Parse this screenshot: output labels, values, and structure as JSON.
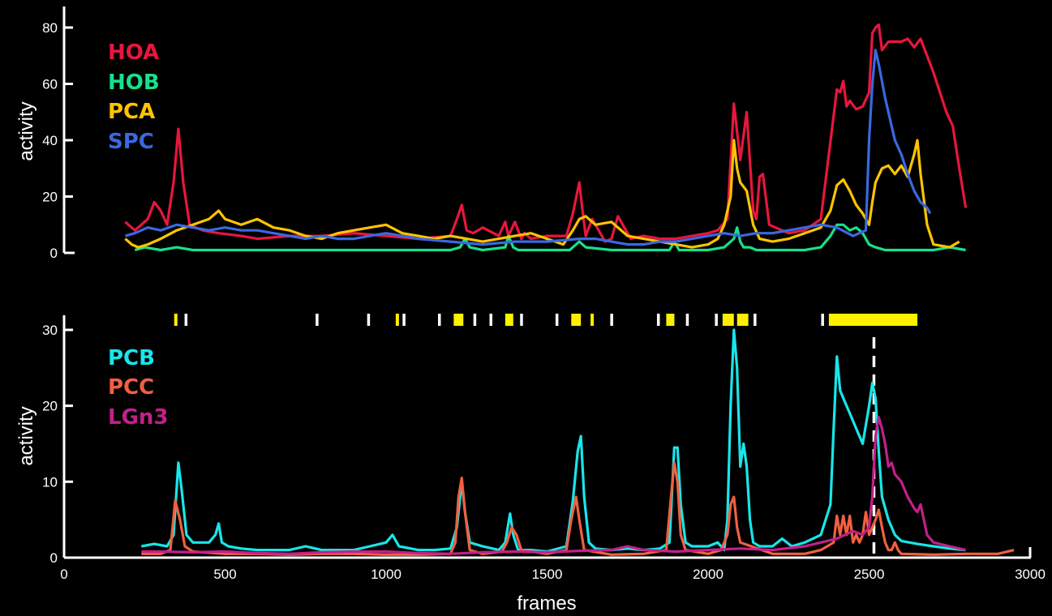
{
  "chart_data": [
    {
      "type": "line",
      "ylabel": "activity",
      "xlabel": "",
      "xlim": [
        0,
        3000
      ],
      "ylim": [
        0,
        85
      ],
      "yticks": [
        0,
        20,
        40,
        60,
        80
      ],
      "legend_placement": "top-left",
      "series": [
        {
          "name": "HOA",
          "color": "#e8163d",
          "x": [
            190,
            220,
            260,
            280,
            300,
            320,
            340,
            355,
            370,
            390,
            430,
            480,
            550,
            600,
            700,
            800,
            900,
            1000,
            1100,
            1200,
            1220,
            1235,
            1250,
            1270,
            1300,
            1350,
            1370,
            1380,
            1400,
            1420,
            1430,
            1450,
            1500,
            1560,
            1580,
            1600,
            1610,
            1620,
            1640,
            1680,
            1700,
            1720,
            1760,
            1800,
            1850,
            1900,
            1950,
            2000,
            2030,
            2060,
            2080,
            2100,
            2120,
            2140,
            2150,
            2160,
            2170,
            2190,
            2250,
            2300,
            2350,
            2400,
            2410,
            2420,
            2430,
            2440,
            2460,
            2480,
            2500,
            2510,
            2520,
            2530,
            2540,
            2560,
            2600,
            2620,
            2640,
            2660,
            2680,
            2700,
            2720,
            2740,
            2760,
            2780,
            2800
          ],
          "y": [
            11,
            8,
            12,
            18,
            15,
            10,
            25,
            44,
            25,
            10,
            8,
            7,
            6,
            5,
            6,
            6,
            7,
            6,
            5,
            6,
            12,
            17,
            8,
            7,
            9,
            6,
            11,
            6,
            11,
            5,
            7,
            5,
            6,
            6,
            14,
            25,
            15,
            6,
            12,
            4,
            5,
            13,
            5,
            6,
            5,
            5,
            6,
            7,
            8,
            12,
            53,
            33,
            50,
            15,
            12,
            27,
            28,
            10,
            7,
            8,
            12,
            58,
            57,
            61,
            52,
            54,
            51,
            52,
            57,
            78,
            80,
            81,
            72,
            75,
            75,
            76,
            73,
            76,
            70,
            64,
            57,
            50,
            45,
            30,
            16
          ]
        },
        {
          "name": "HOB",
          "color": "#18e08a",
          "x": [
            220,
            250,
            300,
            350,
            400,
            500,
            600,
            700,
            800,
            900,
            1000,
            1100,
            1200,
            1230,
            1245,
            1260,
            1300,
            1370,
            1380,
            1395,
            1410,
            1500,
            1570,
            1590,
            1600,
            1620,
            1700,
            1800,
            1880,
            1895,
            1910,
            1950,
            2000,
            2050,
            2080,
            2090,
            2100,
            2110,
            2130,
            2150,
            2200,
            2300,
            2350,
            2380,
            2400,
            2420,
            2440,
            2460,
            2480,
            2500,
            2520,
            2550,
            2600,
            2650,
            2700,
            2750,
            2800
          ],
          "y": [
            1,
            2,
            1,
            2,
            1,
            1,
            1,
            1,
            1,
            1,
            1,
            1,
            1,
            2,
            5,
            2,
            1,
            2,
            6,
            2,
            1,
            1,
            1,
            3,
            4,
            2,
            1,
            1,
            1,
            4,
            1,
            1,
            1,
            2,
            5,
            9,
            4,
            2,
            2,
            1,
            1,
            1,
            2,
            6,
            10,
            10,
            8,
            9,
            7,
            3,
            2,
            1,
            1,
            1,
            1,
            2,
            1
          ]
        },
        {
          "name": "PCA",
          "color": "#ffc400",
          "x": [
            190,
            210,
            230,
            260,
            300,
            350,
            400,
            450,
            480,
            500,
            550,
            600,
            650,
            700,
            750,
            800,
            850,
            900,
            950,
            1000,
            1050,
            1100,
            1150,
            1200,
            1250,
            1300,
            1350,
            1400,
            1450,
            1500,
            1550,
            1580,
            1600,
            1620,
            1650,
            1700,
            1750,
            1800,
            1850,
            1900,
            1950,
            2000,
            2030,
            2050,
            2070,
            2080,
            2090,
            2100,
            2120,
            2140,
            2160,
            2200,
            2250,
            2300,
            2350,
            2380,
            2400,
            2420,
            2440,
            2460,
            2480,
            2500,
            2510,
            2520,
            2540,
            2560,
            2580,
            2600,
            2620,
            2640,
            2650,
            2660,
            2680,
            2700,
            2750,
            2780
          ],
          "y": [
            5,
            3,
            2,
            3,
            5,
            8,
            10,
            12,
            15,
            12,
            10,
            12,
            9,
            8,
            6,
            5,
            7,
            8,
            9,
            10,
            7,
            6,
            5,
            6,
            5,
            4,
            5,
            6,
            7,
            5,
            3,
            8,
            12,
            13,
            10,
            11,
            6,
            5,
            4,
            3,
            2,
            3,
            5,
            10,
            20,
            40,
            30,
            25,
            22,
            10,
            5,
            4,
            5,
            7,
            9,
            15,
            24,
            26,
            22,
            17,
            14,
            10,
            18,
            25,
            30,
            31,
            28,
            31,
            27,
            35,
            40,
            28,
            10,
            3,
            2,
            4
          ]
        },
        {
          "name": "SPC",
          "color": "#3a68e0",
          "x": [
            190,
            220,
            260,
            300,
            350,
            400,
            450,
            500,
            550,
            600,
            650,
            700,
            750,
            800,
            850,
            900,
            950,
            1000,
            1100,
            1200,
            1300,
            1400,
            1500,
            1600,
            1650,
            1700,
            1750,
            1800,
            1850,
            1900,
            2000,
            2050,
            2100,
            2150,
            2200,
            2250,
            2300,
            2350,
            2400,
            2450,
            2490,
            2500,
            2510,
            2520,
            2530,
            2550,
            2580,
            2600,
            2620,
            2640,
            2660,
            2680,
            2690
          ],
          "y": [
            6,
            7,
            9,
            8,
            10,
            9,
            8,
            9,
            8,
            8,
            7,
            6,
            5,
            6,
            5,
            5,
            6,
            7,
            5,
            4,
            3,
            4,
            4,
            5,
            5,
            4,
            3,
            3,
            4,
            4,
            6,
            7,
            6,
            7,
            7,
            8,
            9,
            10,
            9,
            6,
            8,
            40,
            60,
            72,
            67,
            55,
            40,
            35,
            28,
            22,
            18,
            16,
            14
          ]
        }
      ]
    },
    {
      "type": "line",
      "ylabel": "activity",
      "xlabel": "frames",
      "xlim": [
        0,
        3000
      ],
      "ylim": [
        0,
        32
      ],
      "xticks": [
        0,
        500,
        1000,
        1500,
        2000,
        2500,
        3000
      ],
      "yticks": [
        0,
        10,
        20,
        30
      ],
      "legend_placement": "top-left",
      "series": [
        {
          "name": "PCB",
          "color": "#18e6ea",
          "x": [
            240,
            280,
            320,
            340,
            355,
            365,
            380,
            400,
            450,
            470,
            480,
            490,
            510,
            550,
            600,
            700,
            750,
            800,
            900,
            950,
            1000,
            1020,
            1040,
            1100,
            1150,
            1200,
            1220,
            1235,
            1245,
            1260,
            1300,
            1350,
            1370,
            1385,
            1395,
            1410,
            1450,
            1500,
            1560,
            1580,
            1595,
            1605,
            1615,
            1630,
            1650,
            1700,
            1750,
            1800,
            1850,
            1880,
            1895,
            1905,
            1915,
            1930,
            1950,
            2000,
            2030,
            2050,
            2060,
            2070,
            2080,
            2090,
            2100,
            2110,
            2120,
            2130,
            2140,
            2160,
            2200,
            2230,
            2260,
            2300,
            2350,
            2380,
            2390,
            2400,
            2410,
            2420,
            2440,
            2460,
            2480,
            2500,
            2510,
            2520,
            2530,
            2540,
            2560,
            2580,
            2600,
            2650,
            2700,
            2750,
            2800
          ],
          "y": [
            1.5,
            1.8,
            1.5,
            3,
            12.5,
            9,
            3,
            2,
            2,
            3,
            4.5,
            2,
            1.5,
            1.2,
            1,
            1,
            1.5,
            1,
            1,
            1.5,
            2,
            3,
            1.5,
            1,
            1,
            1.2,
            4,
            10,
            6,
            2,
            1.5,
            1,
            2,
            5.8,
            3,
            1,
            1,
            0.8,
            1.5,
            7.5,
            14,
            16,
            8,
            2,
            1.2,
            1,
            1.2,
            1,
            1.2,
            2,
            14.5,
            14.5,
            7,
            2,
            1.5,
            1.5,
            2,
            1,
            5,
            20,
            30,
            25,
            12,
            15,
            12,
            5,
            2,
            1.5,
            1.5,
            2.5,
            1.5,
            2,
            3,
            7,
            17,
            26.5,
            22,
            21,
            19,
            17,
            15,
            20,
            23,
            21,
            14,
            8,
            5,
            3,
            2.2,
            1.8,
            1.5,
            1.2,
            1
          ]
        },
        {
          "name": "PCC",
          "color": "#f06040",
          "x": [
            240,
            300,
            330,
            345,
            360,
            375,
            400,
            500,
            600,
            700,
            800,
            900,
            1000,
            1100,
            1200,
            1215,
            1225,
            1235,
            1245,
            1260,
            1300,
            1360,
            1375,
            1390,
            1405,
            1420,
            1500,
            1560,
            1575,
            1590,
            1600,
            1615,
            1700,
            1800,
            1870,
            1885,
            1895,
            1905,
            1915,
            1930,
            2000,
            2040,
            2060,
            2070,
            2080,
            2090,
            2100,
            2200,
            2300,
            2350,
            2370,
            2390,
            2400,
            2410,
            2420,
            2430,
            2440,
            2450,
            2460,
            2470,
            2480,
            2490,
            2500,
            2510,
            2520,
            2530,
            2540,
            2550,
            2560,
            2570,
            2580,
            2590,
            2600,
            2700,
            2800,
            2900,
            2950
          ],
          "y": [
            0.5,
            0.5,
            1,
            7.5,
            5,
            1.5,
            0.8,
            0.5,
            0.5,
            0.4,
            0.5,
            0.5,
            0.4,
            0.4,
            0.5,
            2,
            8,
            10.5,
            6,
            1,
            0.5,
            0.8,
            2,
            4,
            3,
            1,
            0.5,
            1,
            5,
            8,
            5,
            1,
            0.4,
            0.5,
            1,
            8,
            12.5,
            10,
            3,
            1,
            0.5,
            1,
            3,
            7,
            8,
            4,
            2,
            0.5,
            0.5,
            1,
            1.5,
            2,
            5.5,
            3,
            5.5,
            3,
            5.5,
            2,
            3,
            2,
            3,
            6,
            3,
            4,
            5,
            6.3,
            4,
            2,
            1,
            1,
            2,
            1,
            0.5,
            0.4,
            0.5,
            0.5,
            1
          ]
        },
        {
          "name": "LGn3",
          "color": "#c41f8a",
          "x": [
            240,
            300,
            400,
            500,
            600,
            700,
            800,
            900,
            1000,
            1100,
            1200,
            1300,
            1400,
            1500,
            1600,
            1700,
            1750,
            1800,
            1900,
            2000,
            2100,
            2200,
            2300,
            2350,
            2400,
            2450,
            2480,
            2500,
            2510,
            2520,
            2530,
            2540,
            2550,
            2560,
            2570,
            2580,
            2600,
            2620,
            2640,
            2650,
            2660,
            2670,
            2680,
            2700,
            2750,
            2800
          ],
          "y": [
            0.8,
            0.8,
            0.7,
            0.8,
            0.6,
            0.5,
            0.7,
            0.8,
            0.8,
            0.6,
            0.5,
            0.7,
            0.8,
            0.7,
            0.9,
            1,
            1.5,
            1,
            0.8,
            1,
            1.2,
            1,
            1.5,
            2,
            2.5,
            3.5,
            3,
            4,
            8,
            16,
            18.5,
            17,
            15,
            12,
            12.5,
            11,
            10,
            8,
            6.5,
            6,
            7,
            5,
            3,
            2,
            1.5,
            1
          ]
        }
      ],
      "event_markers": {
        "white_ticks": [
          378,
          785,
          945,
          1055,
          1165,
          1275,
          1325,
          1420,
          1530,
          1700,
          1845,
          1935,
          2025,
          2145,
          2355
        ],
        "yellow_ticks": [
          347,
          1035,
          1640,
          1585,
          1890,
          2060
        ],
        "yellow_spans": [
          [
            1210,
            1240
          ],
          [
            1370,
            1395
          ],
          [
            1575,
            1605
          ],
          [
            1870,
            1895
          ],
          [
            2045,
            2080
          ],
          [
            2090,
            2125
          ],
          [
            2375,
            2650
          ]
        ],
        "dashed_vline_x": 2515
      }
    }
  ],
  "legend_top": [
    "HOA",
    "HOB",
    "PCA",
    "SPC"
  ],
  "legend_bottom": [
    "PCB",
    "PCC",
    "LGn3"
  ]
}
